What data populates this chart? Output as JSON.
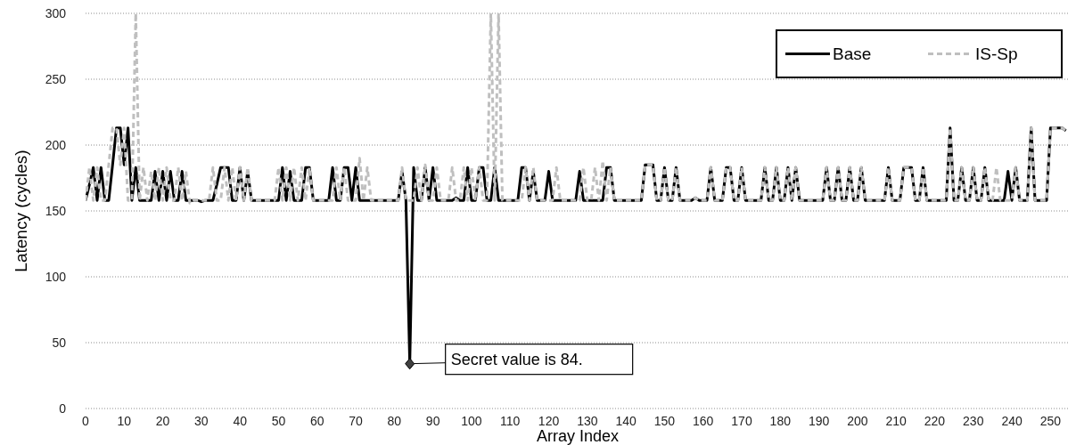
{
  "chart_data": {
    "type": "line",
    "xlabel": "Array Index",
    "ylabel": "Latency (cycles)",
    "xlim": [
      0,
      255
    ],
    "xticks": [
      0,
      10,
      20,
      30,
      40,
      50,
      60,
      70,
      80,
      90,
      100,
      110,
      120,
      130,
      140,
      150,
      160,
      170,
      180,
      190,
      200,
      210,
      220,
      230,
      240,
      250
    ],
    "x": [
      0,
      1,
      2,
      3,
      4,
      5,
      6,
      7,
      8,
      9,
      10,
      11,
      12,
      13,
      14,
      15,
      16,
      17,
      18,
      19,
      20,
      21,
      22,
      23,
      24,
      25,
      26,
      27,
      28,
      29,
      30,
      31,
      32,
      33,
      34,
      35,
      36,
      37,
      38,
      39,
      40,
      41,
      42,
      43,
      44,
      45,
      46,
      47,
      48,
      49,
      50,
      51,
      52,
      53,
      54,
      55,
      56,
      57,
      58,
      59,
      60,
      61,
      62,
      63,
      64,
      65,
      66,
      67,
      68,
      69,
      70,
      71,
      72,
      73,
      74,
      75,
      76,
      77,
      78,
      79,
      80,
      81,
      82,
      83,
      84,
      85,
      86,
      87,
      88,
      89,
      90,
      91,
      92,
      93,
      94,
      95,
      96,
      97,
      98,
      99,
      100,
      101,
      102,
      103,
      104,
      105,
      106,
      107,
      108,
      109,
      110,
      111,
      112,
      113,
      114,
      115,
      116,
      117,
      118,
      119,
      120,
      121,
      122,
      123,
      124,
      125,
      126,
      127,
      128,
      129,
      130,
      131,
      132,
      133,
      134,
      135,
      136,
      137,
      138,
      139,
      140,
      141,
      142,
      143,
      144,
      145,
      146,
      147,
      148,
      149,
      150,
      151,
      152,
      153,
      154,
      155,
      156,
      157,
      158,
      159,
      160,
      161,
      162,
      163,
      164,
      165,
      166,
      167,
      168,
      169,
      170,
      171,
      172,
      173,
      174,
      175,
      176,
      177,
      178,
      179,
      180,
      181,
      182,
      183,
      184,
      185,
      186,
      187,
      188,
      189,
      190,
      191,
      192,
      193,
      194,
      195,
      196,
      197,
      198,
      199,
      200,
      201,
      202,
      203,
      204,
      205,
      206,
      207,
      208,
      209,
      210,
      211,
      212,
      213,
      214,
      215,
      216,
      217,
      218,
      219,
      220,
      221,
      222,
      223,
      224,
      225,
      226,
      227,
      228,
      229,
      230,
      231,
      232,
      233,
      234,
      235,
      236,
      237,
      238,
      239,
      240,
      241,
      242,
      243,
      244,
      245,
      246,
      247,
      248,
      249,
      250,
      251,
      252,
      253,
      254
    ],
    "ylim": [
      0,
      300
    ],
    "yticks": [
      0,
      50,
      100,
      150,
      200,
      250,
      300
    ],
    "grid": "y",
    "legend": "top right",
    "annotations": [
      {
        "text": "Secret value is 84.",
        "x": 84,
        "y": 34
      }
    ],
    "series": [
      {
        "name": "Base",
        "color": "#000000",
        "line_style": "solid",
        "values": [
          158,
          170,
          183,
          158,
          183,
          158,
          158,
          185,
          213,
          213,
          185,
          213,
          158,
          183,
          158,
          158,
          158,
          158,
          180,
          158,
          180,
          158,
          180,
          158,
          158,
          180,
          158,
          158,
          158,
          158,
          157,
          158,
          158,
          158,
          170,
          183,
          183,
          183,
          158,
          158,
          183,
          158,
          180,
          158,
          158,
          158,
          158,
          158,
          158,
          158,
          158,
          183,
          158,
          180,
          158,
          158,
          158,
          183,
          183,
          158,
          158,
          158,
          158,
          158,
          183,
          158,
          158,
          183,
          183,
          158,
          183,
          158,
          158,
          158,
          158,
          158,
          158,
          158,
          158,
          158,
          158,
          158,
          180,
          158,
          34,
          183,
          158,
          158,
          183,
          158,
          183,
          158,
          158,
          158,
          158,
          158,
          160,
          158,
          158,
          183,
          158,
          158,
          183,
          183,
          158,
          158,
          183,
          158,
          158,
          158,
          158,
          158,
          158,
          183,
          183,
          158,
          180,
          158,
          158,
          158,
          180,
          158,
          158,
          158,
          158,
          158,
          158,
          158,
          180,
          158,
          158,
          158,
          158,
          158,
          158,
          183,
          183,
          158,
          158,
          158,
          158,
          158,
          158,
          158,
          158,
          185,
          185,
          185,
          158,
          158,
          183,
          158,
          158,
          183,
          158,
          158,
          158,
          158,
          160,
          158,
          158,
          158,
          183,
          158,
          158,
          158,
          183,
          183,
          158,
          158,
          183,
          158,
          158,
          158,
          158,
          158,
          183,
          158,
          158,
          183,
          158,
          158,
          183,
          158,
          183,
          158,
          158,
          158,
          158,
          158,
          158,
          158,
          183,
          158,
          158,
          183,
          158,
          158,
          183,
          158,
          158,
          183,
          158,
          158,
          158,
          158,
          158,
          158,
          183,
          158,
          158,
          158,
          183,
          183,
          183,
          158,
          158,
          183,
          158,
          158,
          158,
          158,
          158,
          158,
          213,
          158,
          158,
          183,
          158,
          158,
          183,
          158,
          158,
          183,
          158,
          158,
          158,
          158,
          158,
          180,
          158,
          183,
          158,
          158,
          158,
          213,
          158,
          158,
          158,
          158,
          213,
          213,
          213,
          213,
          211
        ]
      },
      {
        "name": "IS-Sp",
        "color": "#bfbfbf",
        "line_style": "dashed",
        "values": [
          158,
          183,
          158,
          183,
          158,
          158,
          185,
          213,
          213,
          185,
          213,
          158,
          158,
          300,
          158,
          183,
          158,
          180,
          158,
          183,
          158,
          183,
          158,
          158,
          183,
          158,
          180,
          156,
          158,
          158,
          158,
          158,
          158,
          183,
          158,
          158,
          183,
          158,
          183,
          158,
          183,
          158,
          183,
          158,
          158,
          158,
          158,
          158,
          158,
          158,
          183,
          158,
          183,
          158,
          183,
          158,
          183,
          158,
          183,
          158,
          158,
          158,
          158,
          158,
          158,
          183,
          158,
          183,
          158,
          158,
          158,
          190,
          158,
          183,
          158,
          158,
          158,
          158,
          158,
          158,
          158,
          158,
          183,
          158,
          158,
          158,
          183,
          158,
          185,
          158,
          158,
          183,
          158,
          158,
          158,
          183,
          158,
          158,
          183,
          158,
          183,
          158,
          183,
          158,
          158,
          300,
          158,
          300,
          158,
          158,
          158,
          158,
          158,
          158,
          183,
          158,
          183,
          158,
          158,
          158,
          158,
          158,
          183,
          158,
          158,
          158,
          158,
          158,
          158,
          183,
          158,
          158,
          183,
          158,
          188,
          158,
          183,
          158,
          158,
          158,
          158,
          158,
          158,
          158,
          158,
          185,
          185,
          185,
          158,
          158,
          183,
          158,
          158,
          183,
          158,
          158,
          158,
          158,
          160,
          158,
          158,
          158,
          183,
          158,
          158,
          158,
          183,
          183,
          158,
          158,
          183,
          158,
          158,
          158,
          158,
          158,
          183,
          158,
          158,
          183,
          158,
          158,
          183,
          158,
          183,
          158,
          158,
          158,
          158,
          158,
          158,
          158,
          183,
          158,
          158,
          183,
          158,
          158,
          183,
          158,
          158,
          183,
          158,
          158,
          158,
          158,
          158,
          158,
          183,
          158,
          158,
          158,
          183,
          183,
          183,
          158,
          158,
          183,
          158,
          158,
          158,
          158,
          158,
          158,
          213,
          158,
          158,
          183,
          158,
          158,
          183,
          158,
          158,
          183,
          158,
          158,
          183,
          158,
          158,
          158,
          158,
          183,
          158,
          158,
          158,
          213,
          158,
          158,
          158,
          158,
          213,
          213,
          213,
          213,
          211
        ]
      }
    ]
  }
}
